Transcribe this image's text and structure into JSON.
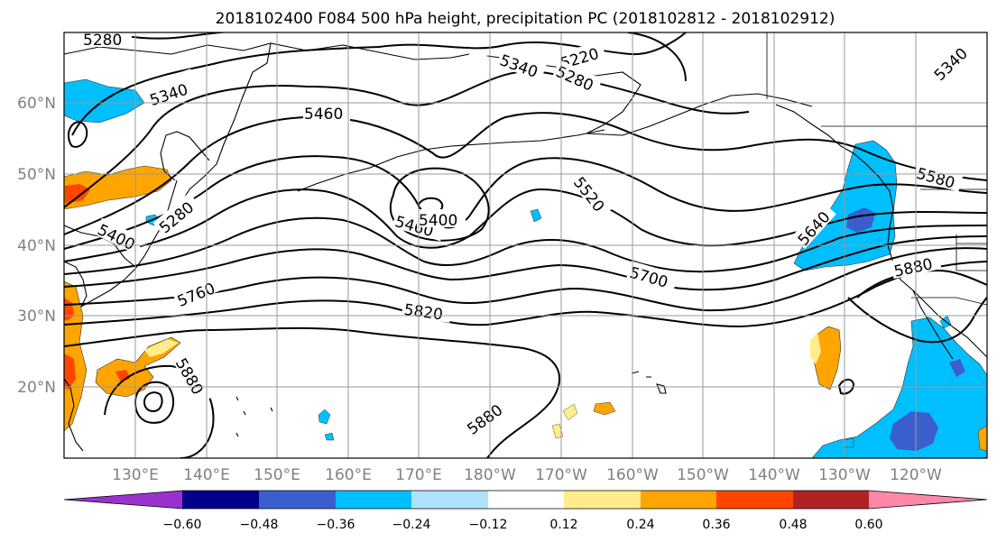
{
  "title": "2018102400 F084 500 hPa height, precipitation PC (2018102812 - 2018102912)",
  "lat_labels": [
    "60°N",
    "50°N",
    "40°N",
    "30°N",
    "20°N"
  ],
  "lon_labels": [
    "130°E",
    "140°E",
    "150°E",
    "160°E",
    "170°E",
    "180°W",
    "170°W",
    "160°W",
    "150°W",
    "140°W",
    "130°W",
    "120°W"
  ],
  "contour_labels": [
    "5280",
    "5340",
    "5460",
    "5220",
    "5340",
    "5280",
    "5340",
    "5580",
    "5280",
    "5400",
    "5460",
    "5400",
    "5520",
    "5640",
    "5700",
    "5880",
    "5760",
    "5820",
    "5880",
    "5880"
  ],
  "colorbar": {
    "tick_labels": [
      "−0.60",
      "−0.48",
      "−0.36",
      "−0.24",
      "−0.12",
      "0.12",
      "0.24",
      "0.36",
      "0.48",
      "0.60"
    ],
    "colors": [
      "#9932CC",
      "#00008B",
      "#3A5FCD",
      "#00BFFF",
      "#B0E2FF",
      "#FFFFFF",
      "#FFEC8B",
      "#FFA500",
      "#FF4500",
      "#B22222",
      "#FF88AA"
    ]
  },
  "shading_colors": {
    "light_orange": "#FFEC8B",
    "orange": "#FFA500",
    "red_orange": "#FF4500",
    "blue": "#00BFFF",
    "dark_blue": "#3A5FCD"
  }
}
